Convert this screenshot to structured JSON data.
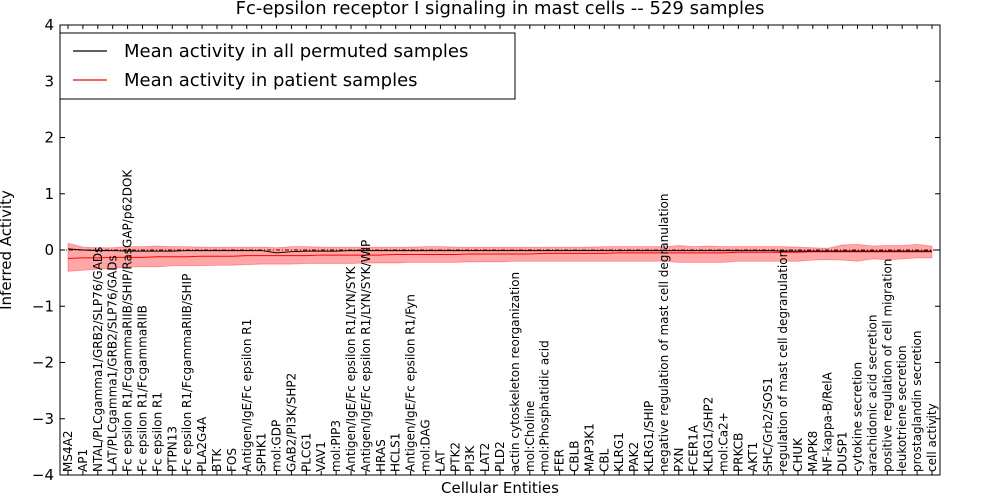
{
  "chart_data": {
    "type": "line",
    "title": "Fc-epsilon receptor I signaling in mast cells -- 529 samples",
    "xlabel": "Cellular Entities",
    "ylabel": "Inferred Activity",
    "ylim": [
      -4,
      4
    ],
    "yticks": [
      -4,
      -3,
      -2,
      -1,
      0,
      1,
      2,
      3,
      4
    ],
    "legend": {
      "placement": "top-left",
      "entries": [
        {
          "label": "Mean activity in all permuted samples",
          "color": "#000000"
        },
        {
          "label": "Mean activity in patient samples",
          "color": "#ff0000"
        }
      ]
    },
    "categories": [
      "MS4A2",
      "AP1",
      "NTAL/PLCgamma1/GRB2/SLP76/GADs",
      "LAT/PLCgamma1/GRB2/SLP76/GADs",
      "Fc epsilon R1/FcgammaRIIB/SHIP/RasGAP/p62DOK",
      "Fc epsilon R1/FcgammaRIIB",
      "Fc epsilon R1",
      "PTPN13",
      "Fc epsilon R1/FcgammaRIIB/SHIP",
      "PLA2G4A",
      "BTK",
      "FOS",
      "Antigen/IgE/Fc epsilon R1",
      "SPHK1",
      "mol:GDP",
      "GAB2/PI3K/SHP2",
      "PLCG1",
      "VAV1",
      "mol:PIP3",
      "Antigen/IgE/Fc epsilon R1/LYN/SYK",
      "Antigen/IgE/Fc epsilon R1/LYN/SYK/WIP",
      "HRAS",
      "HCLS1",
      "Antigen/IgE/Fc epsilon R1/Fyn",
      "mol:DAG",
      "LAT",
      "PTK2",
      "PI3K",
      "LAT2",
      "PLD2",
      "actin cytoskeleton reorganization",
      "mol:Choline",
      "mol:Phosphatidic acid",
      "FER",
      "CBLB",
      "MAP3K1",
      "CBL",
      "KLRG1",
      "PAK2",
      "KLRG1/SHIP",
      "negative regulation of mast cell degranulation",
      "PXN",
      "FCER1A",
      "KLRG1/SHP2",
      "mol:Ca2+",
      "PRKCB",
      "AKT1",
      "SHC/Grb2/SOS1",
      "regulation of mast cell degranulation",
      "CHUK",
      "MAPK8",
      "NF-kappa-B/RelA",
      "DUSP1",
      "cytokine secretion",
      "arachidonic acid secretion",
      "positive regulation of cell migration",
      "leukotriene secretion",
      "prostaglandin secretion",
      "cell activity"
    ],
    "series": [
      {
        "name": "Mean activity in all permuted samples",
        "color": "#000000",
        "values": [
          0.02,
          0.0,
          -0.01,
          -0.01,
          -0.02,
          -0.02,
          -0.02,
          -0.02,
          -0.01,
          -0.01,
          -0.01,
          -0.01,
          -0.01,
          -0.01,
          -0.05,
          -0.03,
          -0.02,
          -0.02,
          -0.02,
          -0.01,
          -0.01,
          -0.01,
          -0.01,
          -0.01,
          -0.01,
          -0.01,
          -0.01,
          -0.01,
          -0.01,
          -0.01,
          -0.01,
          -0.01,
          -0.01,
          -0.01,
          -0.01,
          -0.01,
          -0.01,
          -0.01,
          -0.01,
          -0.01,
          -0.01,
          -0.01,
          -0.01,
          -0.01,
          -0.01,
          -0.01,
          -0.01,
          -0.01,
          -0.02,
          -0.02,
          -0.02,
          -0.02,
          -0.02,
          -0.02,
          -0.02,
          -0.02,
          -0.02,
          -0.02,
          -0.02
        ]
      },
      {
        "name": "Mean activity in patient samples",
        "color": "#ff0000",
        "values": [
          -0.15,
          -0.14,
          -0.14,
          -0.13,
          -0.13,
          -0.13,
          -0.12,
          -0.12,
          -0.12,
          -0.11,
          -0.11,
          -0.11,
          -0.1,
          -0.1,
          -0.1,
          -0.1,
          -0.1,
          -0.09,
          -0.09,
          -0.09,
          -0.09,
          -0.09,
          -0.08,
          -0.08,
          -0.08,
          -0.08,
          -0.08,
          -0.07,
          -0.07,
          -0.07,
          -0.07,
          -0.07,
          -0.06,
          -0.06,
          -0.06,
          -0.06,
          -0.06,
          -0.05,
          -0.05,
          -0.05,
          -0.05,
          -0.05,
          -0.05,
          -0.05,
          -0.05,
          -0.04,
          -0.04,
          -0.04,
          -0.04,
          -0.04,
          -0.03,
          -0.03,
          -0.03,
          -0.03,
          -0.03,
          -0.03,
          -0.03,
          -0.03,
          -0.03
        ],
        "band_upper": [
          0.12,
          0.05,
          0.04,
          0.04,
          0.06,
          0.06,
          0.07,
          0.06,
          0.06,
          0.05,
          0.05,
          0.05,
          0.05,
          0.05,
          0.04,
          0.06,
          0.06,
          0.05,
          0.05,
          0.05,
          0.05,
          0.05,
          0.05,
          0.05,
          0.06,
          0.06,
          0.05,
          0.05,
          0.05,
          0.05,
          0.05,
          0.05,
          0.05,
          0.05,
          0.05,
          0.05,
          0.06,
          0.06,
          0.06,
          0.06,
          0.06,
          0.08,
          0.06,
          0.07,
          0.06,
          0.06,
          0.06,
          0.06,
          0.06,
          0.05,
          0.04,
          0.03,
          0.09,
          0.1,
          0.07,
          0.08,
          0.08,
          0.1,
          0.07
        ],
        "band_lower": [
          -0.38,
          -0.36,
          -0.34,
          -0.33,
          -0.3,
          -0.3,
          -0.3,
          -0.28,
          -0.28,
          -0.28,
          -0.27,
          -0.27,
          -0.26,
          -0.25,
          -0.25,
          -0.25,
          -0.24,
          -0.24,
          -0.24,
          -0.24,
          -0.23,
          -0.23,
          -0.23,
          -0.22,
          -0.22,
          -0.22,
          -0.22,
          -0.21,
          -0.21,
          -0.21,
          -0.2,
          -0.2,
          -0.2,
          -0.2,
          -0.2,
          -0.2,
          -0.2,
          -0.2,
          -0.2,
          -0.2,
          -0.2,
          -0.22,
          -0.22,
          -0.22,
          -0.22,
          -0.2,
          -0.2,
          -0.2,
          -0.2,
          -0.2,
          -0.18,
          -0.17,
          -0.18,
          -0.2,
          -0.16,
          -0.17,
          -0.16,
          -0.14,
          -0.14
        ]
      }
    ]
  }
}
